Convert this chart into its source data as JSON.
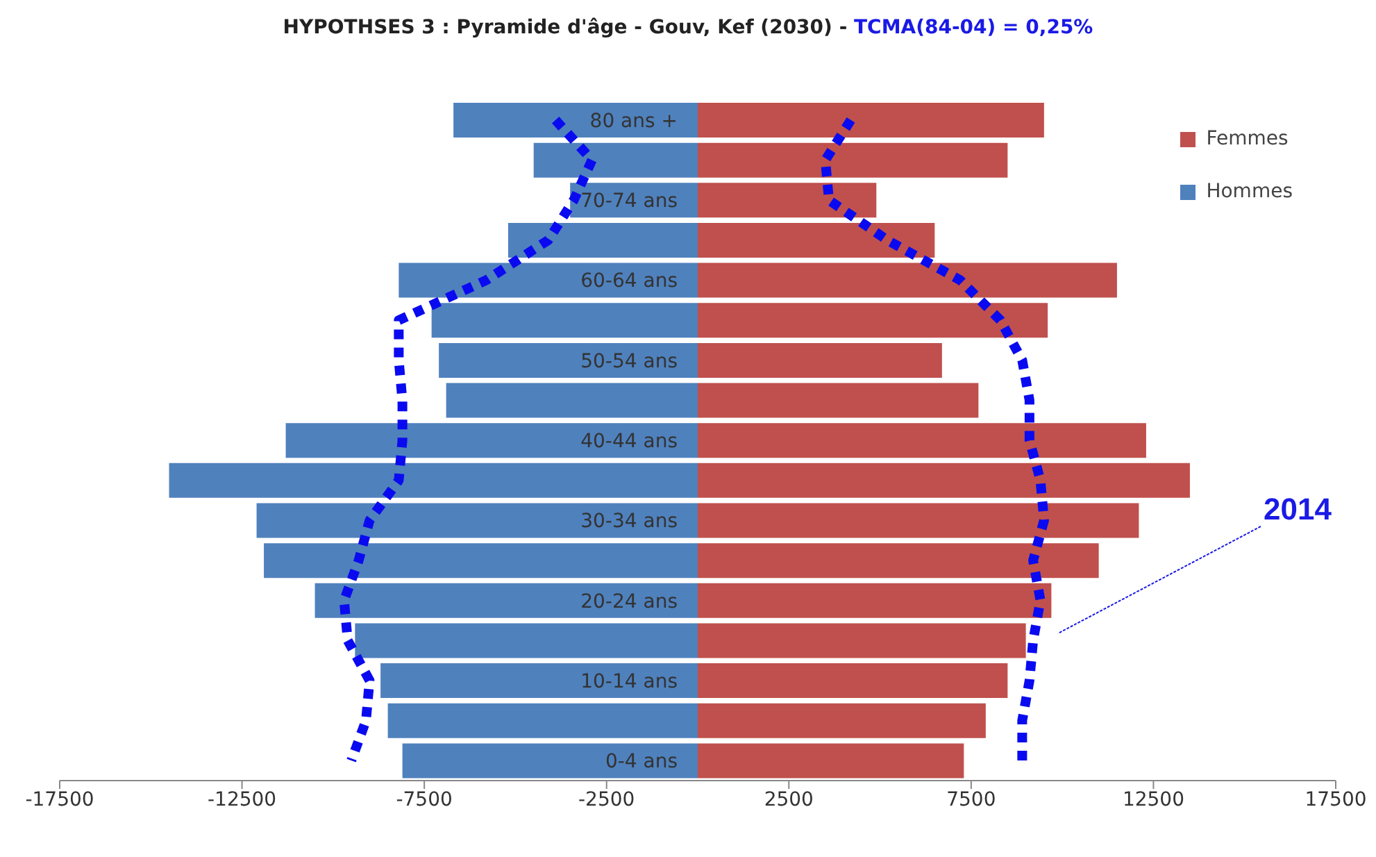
{
  "chart_data": {
    "type": "bar",
    "orientation": "horizontal",
    "stacked": true,
    "title": "HYPOTHSES 3 : Pyramide d'âge - Gouv, Kef (2030) - ",
    "subtitle": "TCMA(84-04) = 0,25%",
    "categories": [
      "80 ans +",
      null,
      "70-74 ans",
      null,
      "60-64 ans",
      null,
      "50-54 ans",
      null,
      "40-44 ans",
      null,
      "30-34 ans",
      null,
      "20-24 ans",
      null,
      "10-14 ans",
      null,
      "0-4 ans"
    ],
    "series": [
      {
        "name": "Hommes",
        "color": "#4f81bd",
        "values": [
          -6700,
          -4500,
          -3500,
          -5200,
          -8200,
          -7300,
          -7100,
          -6900,
          -11300,
          -14500,
          -12100,
          -11900,
          -10500,
          -9400,
          -8700,
          -8500,
          -8100
        ]
      },
      {
        "name": "Femmes",
        "color": "#c0504d",
        "values": [
          9500,
          8500,
          4900,
          6500,
          11500,
          9600,
          6700,
          7700,
          12300,
          13500,
          12100,
          11000,
          9700,
          9000,
          8500,
          7900,
          7300
        ]
      },
      {
        "type": "line",
        "color": "#0a0af0",
        "line_style": "dotted",
        "values": [
          -3900,
          -2900,
          -3400,
          -4100,
          -5800,
          -8200,
          -8200,
          -8100,
          -8100,
          -8200,
          -9000,
          -9300,
          -9700,
          -9600,
          -9000,
          -9100,
          -9500
        ]
      },
      {
        "type": "line",
        "color": "#0a0af0",
        "line_style": "dotted",
        "values": [
          4200,
          3500,
          3600,
          5200,
          7200,
          8300,
          8900,
          9100,
          9100,
          9400,
          9500,
          9200,
          9400,
          9200,
          9100,
          8900,
          8900
        ]
      }
    ],
    "annotations": [
      "2014"
    ],
    "xlim": [
      -17500,
      17500
    ],
    "xticks": [
      -17500,
      -12500,
      -7500,
      -2500,
      2500,
      7500,
      12500,
      17500
    ],
    "grid": false,
    "legend": "top right"
  }
}
